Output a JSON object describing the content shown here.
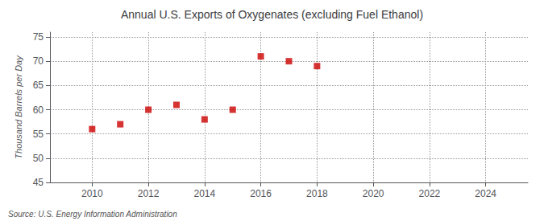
{
  "chart_data": {
    "type": "scatter",
    "title": "Annual U.S. Exports of Oxygenates (excluding Fuel Ethanol)",
    "ylabel": "Thousand Barrels per Day",
    "annotations": [
      "Source: U.S. Energy Information Administration"
    ],
    "x": [
      2010,
      2011,
      2012,
      2013,
      2014,
      2015,
      2016,
      2017,
      2018
    ],
    "values": [
      56.0,
      57.0,
      60.0,
      61.0,
      58.0,
      60.0,
      71.0,
      70.0,
      69.0
    ],
    "color": "#cc0000",
    "marker": "square",
    "xlim": [
      2008.5,
      2025.5
    ],
    "ylim": [
      45,
      76
    ],
    "xticks": [
      2010,
      2012,
      2014,
      2016,
      2018,
      2020,
      2022,
      2024
    ],
    "yticks": [
      45,
      50,
      55,
      60,
      65,
      70,
      75
    ],
    "grid": true
  }
}
